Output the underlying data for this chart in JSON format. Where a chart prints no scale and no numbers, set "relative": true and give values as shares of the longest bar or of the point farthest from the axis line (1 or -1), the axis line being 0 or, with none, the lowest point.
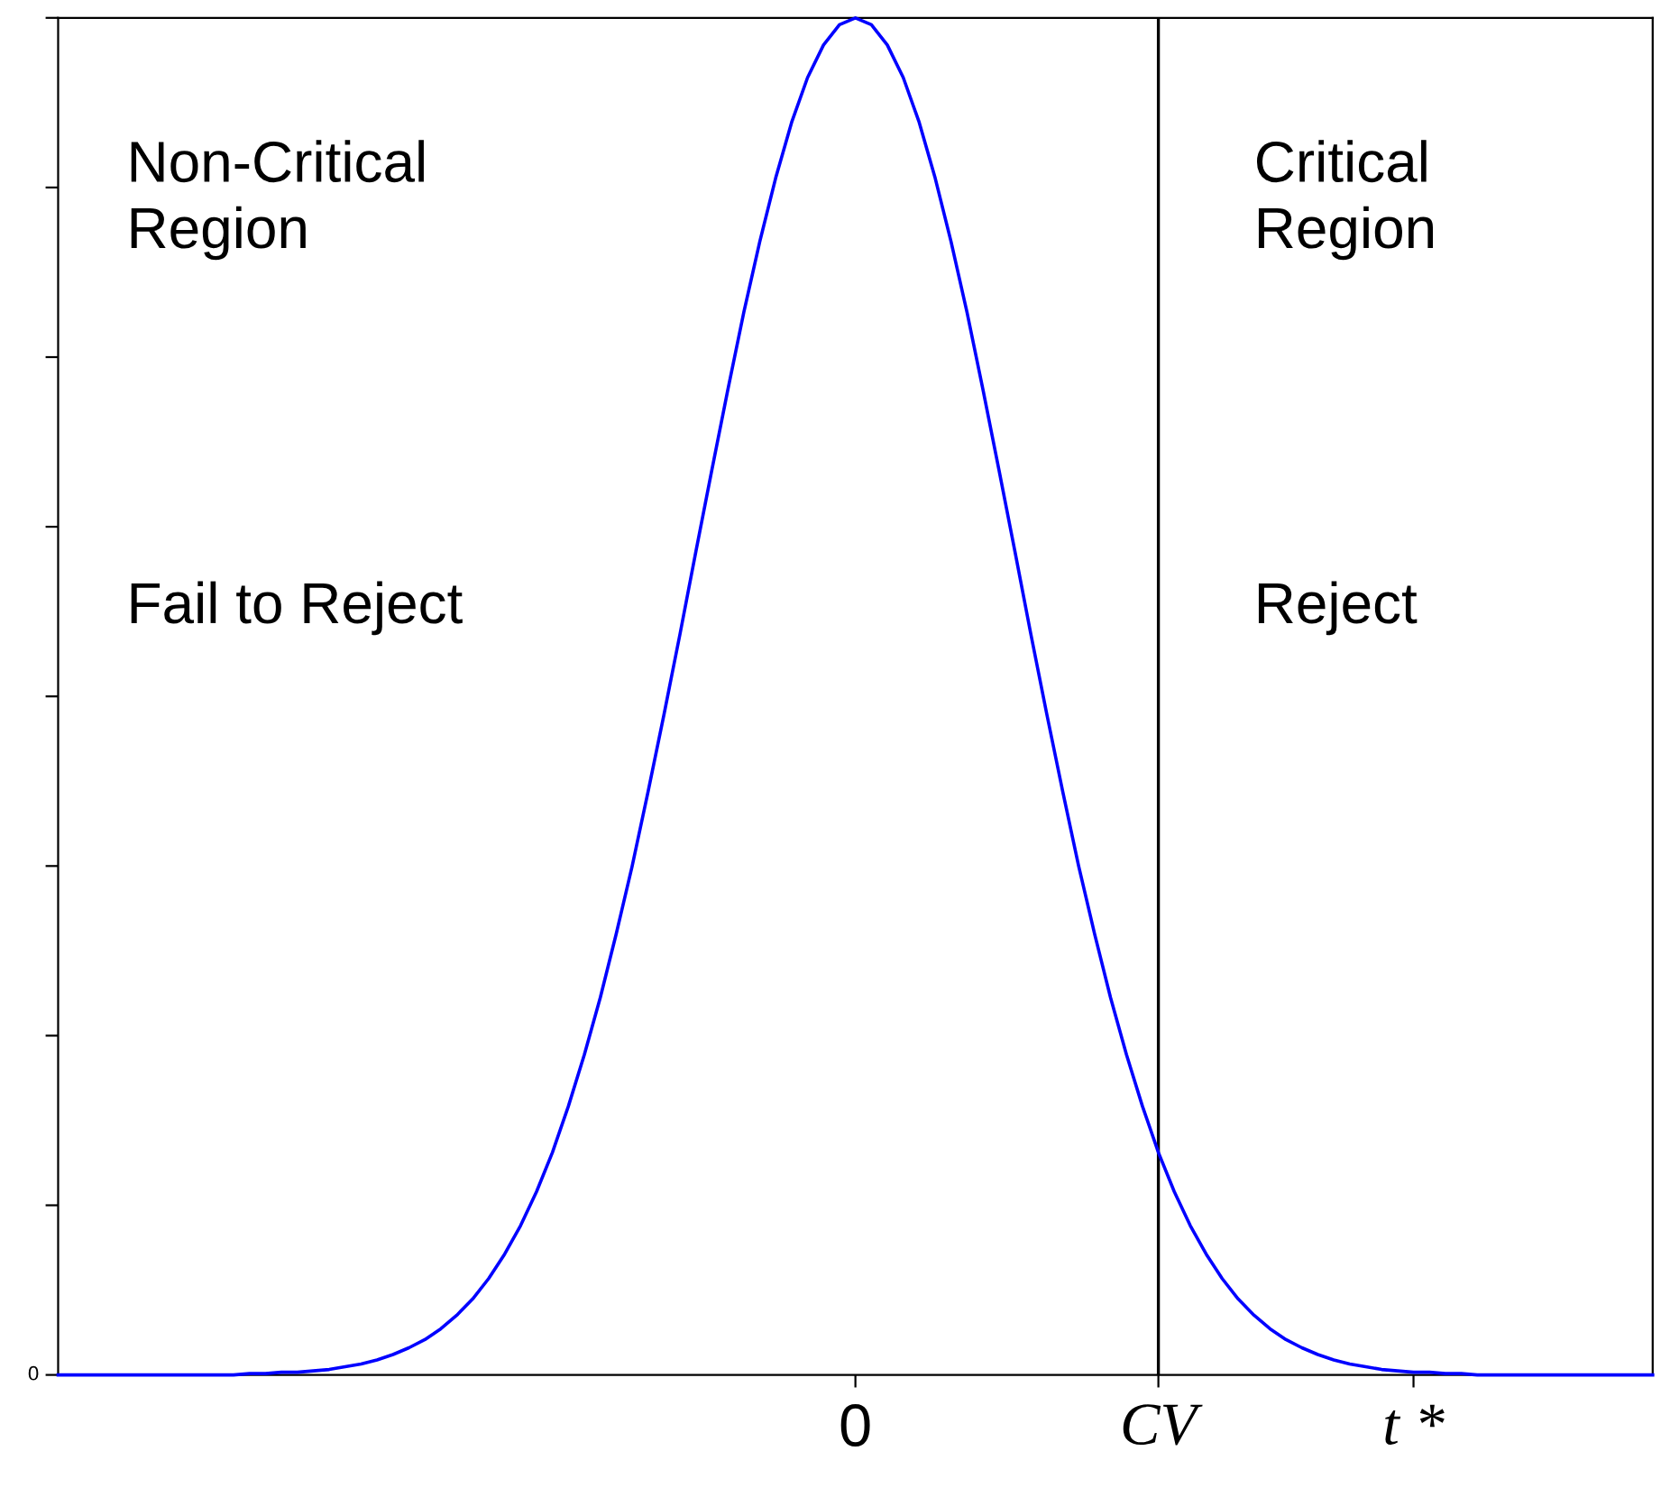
{
  "chart_data": {
    "type": "line",
    "relative": true,
    "categories": [
      null,
      null,
      null,
      null,
      null,
      null,
      null,
      null,
      null,
      null,
      null,
      null,
      null,
      null,
      null,
      null,
      null,
      null,
      null,
      null,
      null,
      null,
      null,
      null,
      null,
      null,
      null,
      null,
      null,
      null,
      null,
      null,
      null,
      null,
      null,
      null,
      null,
      null,
      null,
      null,
      null,
      null,
      null,
      null,
      null,
      null,
      null,
      null,
      null,
      null,
      "0",
      null,
      null,
      null,
      null,
      null,
      null,
      null,
      null,
      null,
      null,
      null,
      null,
      null,
      null,
      null,
      null,
      null,
      null,
      "CV",
      null,
      null,
      null,
      null,
      null,
      null,
      null,
      null,
      null,
      null,
      null,
      null,
      null,
      null,
      null,
      "t *",
      null,
      null,
      null,
      null,
      null,
      null,
      null,
      null,
      null,
      null,
      null,
      null,
      null,
      null,
      null
    ],
    "series": [
      {
        "color": "#0000ff",
        "values": [
          0,
          0,
          0,
          0,
          0,
          0,
          0,
          0,
          0,
          0,
          0,
          0,
          0.001,
          0.001,
          0.002,
          0.002,
          0.003,
          0.004,
          0.006,
          0.008,
          0.011,
          0.015,
          0.02,
          0.026,
          0.034,
          0.044,
          0.056,
          0.071,
          0.089,
          0.11,
          0.135,
          0.164,
          0.198,
          0.236,
          0.278,
          0.325,
          0.375,
          0.43,
          0.487,
          0.546,
          0.607,
          0.667,
          0.726,
          0.783,
          0.835,
          0.882,
          0.923,
          0.956,
          0.98,
          0.995,
          1,
          0.995,
          0.98,
          0.956,
          0.923,
          0.882,
          0.835,
          0.783,
          0.726,
          0.667,
          0.607,
          0.546,
          0.487,
          0.43,
          0.375,
          0.325,
          0.278,
          0.236,
          0.198,
          0.164,
          0.135,
          0.11,
          0.089,
          0.071,
          0.056,
          0.044,
          0.034,
          0.026,
          0.02,
          0.015,
          0.011,
          0.008,
          0.006,
          0.004,
          0.003,
          0.002,
          0.002,
          0.001,
          0.001,
          0,
          0,
          0,
          0,
          0,
          0,
          0,
          0,
          0,
          0,
          0,
          0
        ]
      }
    ],
    "ref_lines": [
      {
        "axis": "x",
        "value": "CV",
        "color": "#000000"
      }
    ],
    "annotations": [
      "Non-Critical\nRegion",
      "Fail to Reject",
      "Critical\nRegion",
      "Reject",
      "0"
    ],
    "grid": false,
    "legend": false
  }
}
